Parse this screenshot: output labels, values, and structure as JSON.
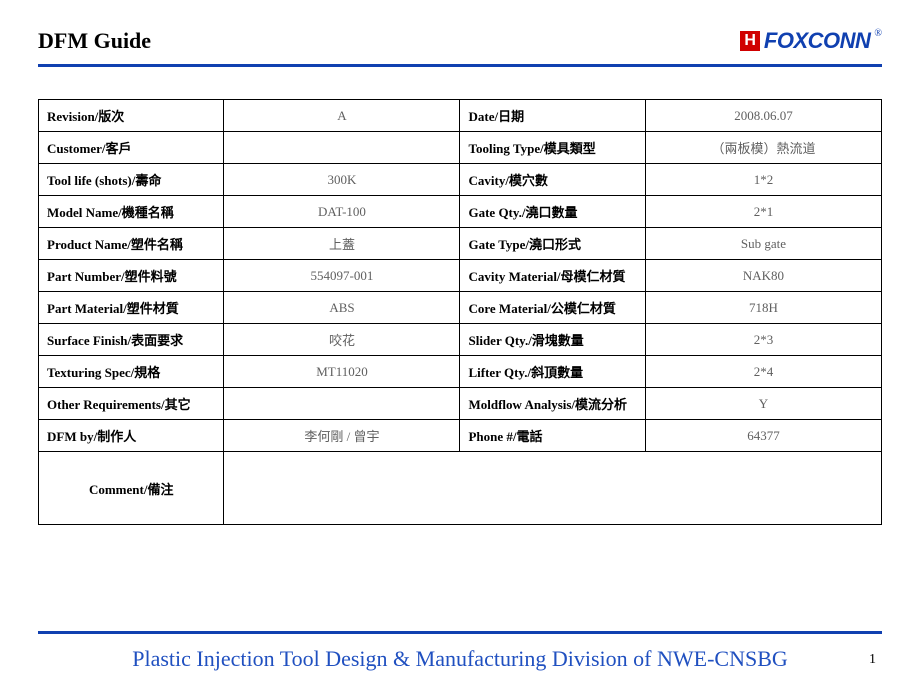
{
  "header": {
    "title": "DFM  Guide",
    "logo_mark": "H",
    "logo_text": "FOXCONN",
    "logo_r": "®"
  },
  "rows": [
    {
      "l1": "Revision/版次",
      "v1": "A",
      "l2": "Date/日期",
      "v2": "2008.06.07"
    },
    {
      "l1": "Customer/客戶",
      "v1": "",
      "l2": "Tooling Type/模具類型",
      "v2": "（兩板模）熱流道"
    },
    {
      "l1": "Tool  life (shots)/壽命",
      "v1": "300K",
      "l2": "Cavity/模穴數",
      "v2": "1*2"
    },
    {
      "l1": "Model Name/機種名稱",
      "v1": "DAT-100",
      "l2": "Gate Qty./澆口數量",
      "v2": "2*1"
    },
    {
      "l1": "Product Name/塑件名稱",
      "v1": "上蓋",
      "l2": "Gate Type/澆口形式",
      "v2": "Sub gate"
    },
    {
      "l1": "Part Number/塑件料號",
      "v1": "554097-001",
      "l2": "Cavity Material/母模仁材質",
      "v2": "NAK80"
    },
    {
      "l1": "Part Material/塑件材質",
      "v1": "ABS",
      "l2": "Core Material/公模仁材質",
      "v2": "718H"
    },
    {
      "l1": "Surface Finish/表面要求",
      "v1": "咬花",
      "l2": "Slider Qty./滑塊數量",
      "v2": "2*3"
    },
    {
      "l1": "Texturing Spec/規格",
      "v1": "MT11020",
      "l2": "Lifter Qty./斜頂數量",
      "v2": "2*4"
    },
    {
      "l1": "Other Requirements/其它",
      "v1": "",
      "l2": "Moldflow Analysis/模流分析",
      "v2": "Y"
    },
    {
      "l1": "DFM by/制作人",
      "v1": "李何剛 / 曾宇",
      "l2": "Phone #/電話",
      "v2": "64377"
    }
  ],
  "comment": {
    "label": "Comment/備注",
    "value": ""
  },
  "footer": {
    "text": "Plastic Injection Tool Design & Manufacturing Division of NWE-CNSBG",
    "page": "1"
  },
  "colors": {
    "rule": "#1040b0",
    "footer_text": "#2050c0",
    "logo_red": "#d00000",
    "value_text": "#606060"
  }
}
